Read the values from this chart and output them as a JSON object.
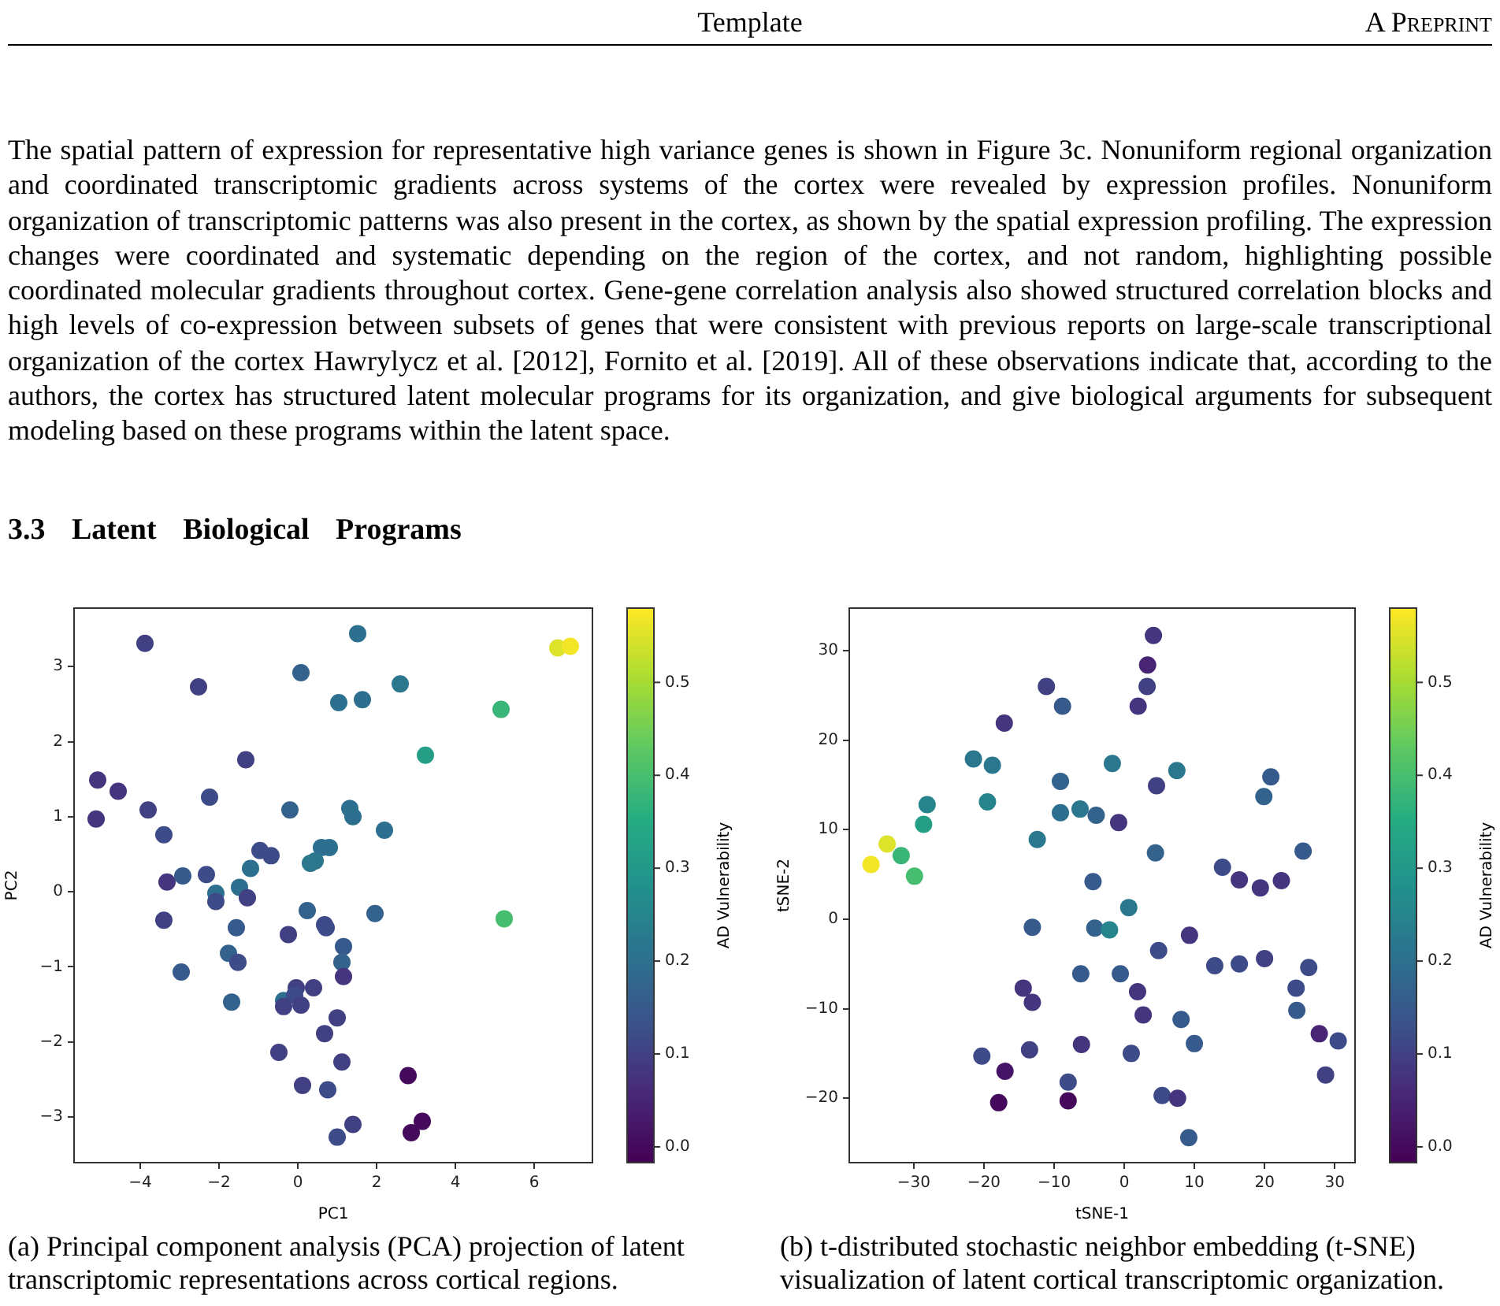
{
  "chart_data": [
    {
      "type": "scatter",
      "xlabel": "PC1",
      "ylabel": "PC2",
      "clabel": "AD Vulnerability",
      "annotations": [
        "Template",
        "A Preprint",
        "The spatial pattern of expression for representative high variance genes is shown in Figure 3c. Nonuniform regional organization and coordinated transcriptomic gradients across systems of the cortex were revealed by expression profiles. Nonuniform organization of transcriptomic patterns was also present in the cortex, as shown by the spatial expression profiling. The expression changes were coordinated and systematic depending on the region of the cortex, and not random, highlighting possible coordinated molecular gradients throughout cortex. Gene-gene correlation analysis also showed structured correlation blocks and high levels of co-expression between subsets of genes that were consistent with previous reports on large-scale transcriptional organization of the cortex Hawrylycz et al. [2012], Fornito et al. [2019]. All of these observations indicate that, according to the authors, the cortex has structured latent molecular programs for its organization, and give biological arguments for subsequent modeling based on these programs within the latent space.",
        "3.3 Latent Biological Programs",
        "(a) Principal component analysis (PCA) projection of latent transcriptomic representations across cortical regions."
      ],
      "x": [
        -3.88,
        -2.52,
        0.08,
        1.52,
        1.04,
        1.64,
        2.6,
        6.6,
        6.92,
        5.16,
        3.24,
        -1.32,
        -5.08,
        -4.56,
        -5.12,
        -3.8,
        -2.24,
        -3.4,
        -0.2,
        1.32,
        1.4,
        2.2,
        -0.96,
        -0.68,
        0.6,
        0.8,
        0.44,
        0.32,
        -3.32,
        -2.92,
        -2.32,
        -1.2,
        -1.48,
        -2.08,
        -2.08,
        -1.28,
        -3.4,
        -1.56,
        -0.24,
        0.24,
        0.68,
        0.72,
        1.96,
        5.24,
        -1.76,
        -1.52,
        -2.96,
        1.16,
        1.12,
        1.16,
        -0.04,
        0.4,
        -0.36,
        -0.08,
        -0.36,
        0.08,
        -1.68,
        1.0,
        0.68,
        -0.48,
        1.12,
        2.8,
        0.12,
        0.76,
        1.4,
        1.0,
        3.16,
        2.88
      ],
      "values": [
        3.31,
        2.73,
        2.92,
        3.44,
        2.52,
        2.56,
        2.77,
        3.25,
        3.27,
        2.43,
        1.82,
        1.76,
        1.49,
        1.34,
        0.97,
        1.09,
        1.26,
        0.76,
        1.09,
        1.11,
        1.0,
        0.82,
        0.55,
        0.48,
        0.59,
        0.59,
        0.41,
        0.38,
        0.13,
        0.21,
        0.23,
        0.31,
        0.06,
        -0.02,
        -0.13,
        -0.08,
        -0.38,
        -0.48,
        -0.57,
        -0.25,
        -0.44,
        -0.48,
        -0.29,
        -0.36,
        -0.82,
        -0.94,
        -1.07,
        -0.73,
        -0.94,
        -1.13,
        -1.28,
        -1.28,
        -1.45,
        -1.38,
        -1.53,
        -1.51,
        -1.47,
        -1.68,
        -1.89,
        -2.14,
        -2.27,
        -2.45,
        -2.58,
        -2.64,
        -3.1,
        -3.27,
        -3.06,
        -3.21
      ],
      "cvalues": [
        0.1,
        0.1,
        0.17,
        0.2,
        0.2,
        0.2,
        0.22,
        0.55,
        0.57,
        0.38,
        0.32,
        0.1,
        0.08,
        0.08,
        0.08,
        0.1,
        0.12,
        0.12,
        0.17,
        0.2,
        0.2,
        0.2,
        0.12,
        0.12,
        0.2,
        0.2,
        0.22,
        0.22,
        0.08,
        0.15,
        0.12,
        0.2,
        0.2,
        0.2,
        0.12,
        0.1,
        0.1,
        0.15,
        0.1,
        0.17,
        0.12,
        0.12,
        0.17,
        0.4,
        0.17,
        0.12,
        0.15,
        0.15,
        0.17,
        0.08,
        0.1,
        0.1,
        0.2,
        0.12,
        0.1,
        0.1,
        0.17,
        0.1,
        0.1,
        0.1,
        0.1,
        0.0,
        0.1,
        0.12,
        0.1,
        0.12,
        0.0,
        0.0
      ],
      "xlim": [
        -5.68,
        7.48
      ],
      "ylim": [
        -3.61,
        3.78
      ],
      "xticks": [
        {
          "value": -4,
          "label": "−4"
        },
        {
          "value": -2,
          "label": "−2"
        },
        0,
        2,
        4,
        6
      ],
      "yticks": [
        {
          "value": -3,
          "label": "−3"
        },
        {
          "value": -2,
          "label": "−2"
        },
        {
          "value": -1,
          "label": "−1"
        },
        0,
        1,
        2,
        3
      ],
      "clim": [
        -0.017,
        0.58
      ],
      "cticks": [
        {
          "value": 0,
          "label": "0.0"
        },
        0.1,
        0.2,
        0.3,
        0.4,
        0.5
      ],
      "marker": "circle"
    },
    {
      "type": "scatter",
      "xlabel": "tSNE-1",
      "ylabel": "tSNE-2",
      "clabel": "AD Vulnerability",
      "annotations": [
        "(b) t-distributed stochastic neighbor embedding (t-SNE) visualization of latent cortical transcriptomic organization."
      ],
      "x": [
        4.16,
        3.33,
        3.26,
        1.98,
        -11.1,
        -8.8,
        -17.1,
        -21.5,
        -18.8,
        -1.7,
        7.5,
        20.9,
        19.9,
        4.6,
        -9.1,
        -19.5,
        -28.1,
        -28.6,
        -33.8,
        -36.1,
        -31.8,
        -29.9,
        -12.4,
        -9.1,
        -6.3,
        -4.0,
        -0.8,
        4.45,
        25.5,
        14.0,
        16.4,
        19.4,
        22.4,
        -4.45,
        0.64,
        -13.1,
        -4.2,
        -2.1,
        9.3,
        4.9,
        12.9,
        16.4,
        20.0,
        26.3,
        24.5,
        24.6,
        27.8,
        30.5,
        28.7,
        -6.2,
        -0.56,
        1.9,
        2.7,
        8.1,
        10.0,
        1.0,
        -14.4,
        -13.1,
        -13.5,
        -6.1,
        -20.3,
        -17.0,
        -8.0,
        -17.9,
        -8.0,
        5.4,
        7.6,
        9.2
      ],
      "values": [
        31.7,
        28.4,
        26.0,
        23.8,
        26.0,
        23.8,
        21.9,
        17.9,
        17.2,
        17.4,
        16.6,
        15.9,
        13.7,
        14.9,
        15.4,
        13.1,
        12.8,
        10.6,
        8.4,
        6.1,
        7.1,
        4.8,
        8.9,
        11.9,
        12.3,
        11.6,
        10.8,
        7.4,
        7.6,
        5.8,
        4.4,
        3.5,
        4.3,
        4.2,
        1.3,
        -0.9,
        -1.0,
        -1.2,
        -1.8,
        -3.5,
        -5.2,
        -5.0,
        -4.4,
        -5.4,
        -7.7,
        -10.2,
        -12.8,
        -13.6,
        -17.4,
        -6.1,
        -6.1,
        -8.1,
        -10.7,
        -11.2,
        -13.9,
        -15.0,
        -7.7,
        -9.3,
        -14.6,
        -14.0,
        -15.3,
        -17.0,
        -18.2,
        -20.5,
        -20.3,
        -19.7,
        -20.0,
        -24.4
      ],
      "cvalues": [
        0.08,
        0.05,
        0.1,
        0.08,
        0.1,
        0.15,
        0.08,
        0.22,
        0.22,
        0.22,
        0.22,
        0.15,
        0.17,
        0.1,
        0.17,
        0.25,
        0.25,
        0.32,
        0.55,
        0.57,
        0.38,
        0.4,
        0.22,
        0.2,
        0.22,
        0.17,
        0.08,
        0.17,
        0.15,
        0.12,
        0.08,
        0.08,
        0.08,
        0.15,
        0.22,
        0.15,
        0.17,
        0.25,
        0.08,
        0.12,
        0.12,
        0.12,
        0.1,
        0.12,
        0.12,
        0.15,
        0.05,
        0.12,
        0.1,
        0.15,
        0.15,
        0.08,
        0.08,
        0.15,
        0.15,
        0.12,
        0.08,
        0.08,
        0.1,
        0.08,
        0.12,
        0.02,
        0.12,
        0.0,
        0.0,
        0.12,
        0.08,
        0.15
      ],
      "xlim": [
        -39.2,
        32.9
      ],
      "ylim": [
        -27.2,
        34.75
      ],
      "xticks": [
        {
          "value": -30,
          "label": "−30"
        },
        {
          "value": -20,
          "label": "−20"
        },
        {
          "value": -10,
          "label": "−10"
        },
        0,
        10,
        20,
        30
      ],
      "yticks": [
        {
          "value": -20,
          "label": "−20"
        },
        {
          "value": -10,
          "label": "−10"
        },
        0,
        10,
        20,
        30
      ],
      "clim": [
        -0.017,
        0.58
      ],
      "cticks": [
        {
          "value": 0,
          "label": "0.0"
        },
        0.1,
        0.2,
        0.3,
        0.4,
        0.5
      ],
      "marker": "circle"
    }
  ]
}
